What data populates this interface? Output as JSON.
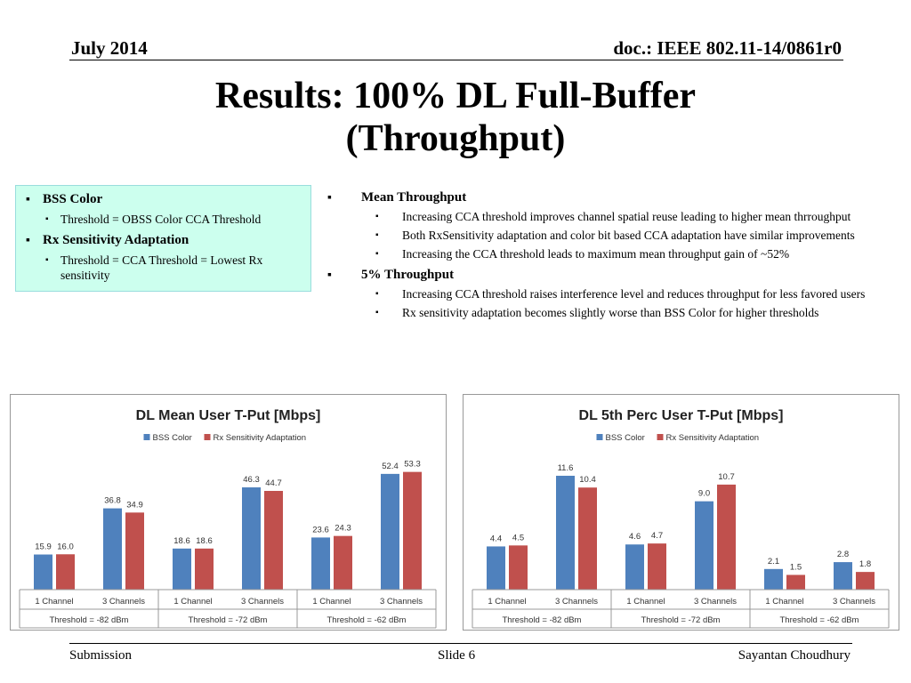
{
  "header": {
    "date": "July 2014",
    "doc": "doc.: IEEE 802.11-14/0861r0"
  },
  "title": {
    "line1": "Results: 100% DL Full-Buffer",
    "line2": "(Throughput)"
  },
  "config_box": {
    "items": [
      {
        "label": "BSS Color",
        "sub": "Threshold = OBSS Color CCA Threshold"
      },
      {
        "label": "Rx Sensitivity Adaptation",
        "sub": "Threshold = CCA Threshold = Lowest Rx sensitivity"
      }
    ]
  },
  "results": {
    "items": [
      {
        "label": "Mean Throughput",
        "subs": [
          "Increasing CCA threshold improves channel spatial reuse leading to higher mean thrroughput",
          "Both RxSensitivity adaptation and color bit based CCA adaptation have similar improvements",
          "Increasing the CCA threshold leads to maximum mean throughput gain of  ~52%"
        ]
      },
      {
        "label": "5% Throughput",
        "subs": [
          "Increasing CCA threshold raises interference level and reduces throughput for less favored users",
          "Rx sensitivity adaptation becomes slightly worse than BSS Color for higher thresholds"
        ]
      }
    ]
  },
  "colors": {
    "bss": "#4f81bd",
    "rx": "#c0504d"
  },
  "chart_data": [
    {
      "type": "bar",
      "title": "DL Mean User T-Put [Mbps]",
      "categories": [
        "1 Channel",
        "3 Channels",
        "1 Channel",
        "3 Channels",
        "1 Channel",
        "3 Channels"
      ],
      "groups": [
        "Threshold = -82 dBm",
        "Threshold = -72 dBm",
        "Threshold = -62 dBm"
      ],
      "series": [
        {
          "name": "BSS Color",
          "values": [
            15.9,
            36.8,
            18.6,
            46.3,
            23.6,
            52.4
          ],
          "labels": [
            "15.9",
            "36.8",
            "18.6",
            "46.3",
            "23.6",
            "52.4"
          ]
        },
        {
          "name": "Rx Sensitivity Adaptation",
          "values": [
            16.0,
            34.9,
            18.6,
            44.7,
            24.3,
            53.3
          ],
          "labels": [
            "16.0",
            "34.9",
            "18.6",
            "44.7",
            "24.3",
            "53.3"
          ]
        }
      ],
      "ylim": [
        0,
        60
      ],
      "legend": "top"
    },
    {
      "type": "bar",
      "title": "DL 5th Perc User T-Put [Mbps]",
      "categories": [
        "1 Channel",
        "3 Channels",
        "1 Channel",
        "3 Channels",
        "1 Channel",
        "3 Channels"
      ],
      "groups": [
        "Threshold = -82 dBm",
        "Threshold = -72 dBm",
        "Threshold = -62 dBm"
      ],
      "series": [
        {
          "name": "BSS Color",
          "values": [
            4.4,
            11.6,
            4.6,
            9.0,
            2.1,
            2.8
          ],
          "labels": [
            "4.4",
            "11.6",
            "4.6",
            "9.0",
            "2.1",
            "2.8"
          ]
        },
        {
          "name": "Rx Sensitivity Adaptation",
          "values": [
            4.5,
            10.4,
            4.7,
            10.7,
            1.5,
            1.8
          ],
          "labels": [
            "4.5",
            "10.4",
            "4.7",
            "10.7",
            "1.5",
            "1.8"
          ]
        }
      ],
      "ylim": [
        0,
        13.5
      ],
      "legend": "top"
    }
  ],
  "footer": {
    "left": "Submission",
    "middle": "Slide 6",
    "right": "Sayantan Choudhury"
  }
}
